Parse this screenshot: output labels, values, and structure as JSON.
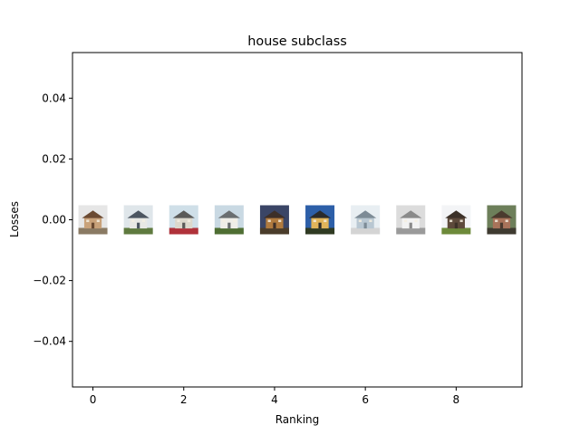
{
  "chart_data": {
    "type": "scatter",
    "title": "house subclass",
    "xlabel": "Ranking",
    "ylabel": "Losses",
    "xlim": [
      -0.45,
      9.45
    ],
    "ylim": [
      -0.055,
      0.055
    ],
    "xticks": [
      0,
      2,
      4,
      6,
      8
    ],
    "xtick_labels": [
      "0",
      "2",
      "4",
      "6",
      "8"
    ],
    "yticks": [
      -0.04,
      -0.02,
      0.0,
      0.02,
      0.04
    ],
    "ytick_labels": [
      "−0.04",
      "−0.02",
      "0.00",
      "0.02",
      "0.04"
    ],
    "grid": false,
    "points": [
      {
        "x": 0,
        "y": 0.0,
        "thumb": "house-thumbnail",
        "palette": {
          "sky": "#e6e6e6",
          "wall": "#c9a27a",
          "roof": "#6b4a32",
          "ground": "#8a7a63"
        }
      },
      {
        "x": 1,
        "y": 0.0,
        "thumb": "house-thumbnail",
        "palette": {
          "sky": "#dfe6ea",
          "wall": "#e8e8e4",
          "roof": "#4c5560",
          "ground": "#5f7a3f"
        }
      },
      {
        "x": 2,
        "y": 0.0,
        "thumb": "house-thumbnail",
        "palette": {
          "sky": "#cfdfe8",
          "wall": "#dcd8cc",
          "roof": "#5a5a58",
          "ground": "#b0323a"
        }
      },
      {
        "x": 3,
        "y": 0.0,
        "thumb": "house-thumbnail",
        "palette": {
          "sky": "#c9d9e3",
          "wall": "#efeee8",
          "roof": "#6a6e70",
          "ground": "#4f6e33"
        }
      },
      {
        "x": 4,
        "y": 0.0,
        "thumb": "house-thumbnail",
        "palette": {
          "sky": "#3a4566",
          "wall": "#b07a3e",
          "roof": "#3d2f28",
          "ground": "#4a3c2a"
        }
      },
      {
        "x": 5,
        "y": 0.0,
        "thumb": "house-thumbnail",
        "palette": {
          "sky": "#2d5fa8",
          "wall": "#e0b45a",
          "roof": "#2b2b2b",
          "ground": "#2f3a22"
        }
      },
      {
        "x": 6,
        "y": 0.0,
        "thumb": "house-thumbnail",
        "palette": {
          "sky": "#e8eef2",
          "wall": "#b9c7d2",
          "roof": "#7d8b96",
          "ground": "#d4d4d4"
        }
      },
      {
        "x": 7,
        "y": 0.0,
        "thumb": "house-thumbnail",
        "palette": {
          "sky": "#dcdcdc",
          "wall": "#f2f2f2",
          "roof": "#8a8a8a",
          "ground": "#9a9a9a"
        }
      },
      {
        "x": 8,
        "y": 0.0,
        "thumb": "house-thumbnail",
        "palette": {
          "sky": "#f3f4f6",
          "wall": "#5d4a3b",
          "roof": "#3c3128",
          "ground": "#6d8a3a"
        }
      },
      {
        "x": 9,
        "y": 0.0,
        "thumb": "house-thumbnail",
        "palette": {
          "sky": "#6d7f5a",
          "wall": "#a8735a",
          "roof": "#4a3a2e",
          "ground": "#3e3a30"
        }
      }
    ]
  }
}
